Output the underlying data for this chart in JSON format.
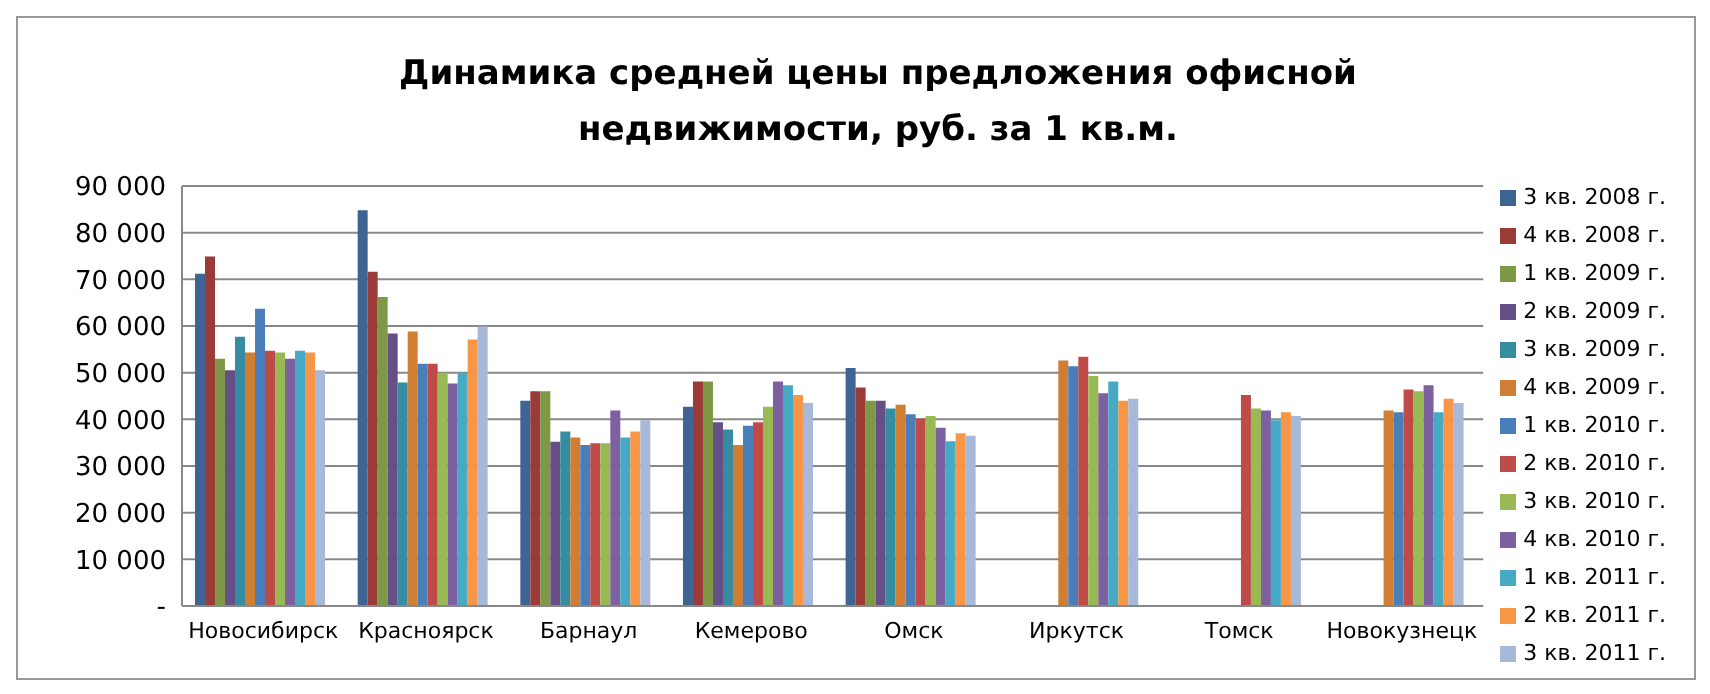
{
  "chart_data": {
    "type": "bar",
    "title": "Динамика средней цены предложения офисной недвижимости, руб. за 1 кв.м.",
    "categories": [
      "Новосибирск",
      "Красноярск",
      "Барнаул",
      "Кемерово",
      "Омск",
      "Иркутск",
      "Томск",
      "Новокузнецк"
    ],
    "series": [
      {
        "name": "3 кв. 2008 г.",
        "color": "#3e6494",
        "values": [
          71200,
          84800,
          44000,
          42700,
          51000,
          null,
          null,
          null
        ]
      },
      {
        "name": "4 кв. 2008 г.",
        "color": "#9a3b38",
        "values": [
          74900,
          71600,
          46000,
          48100,
          46800,
          null,
          null,
          null
        ]
      },
      {
        "name": "1 кв. 2009 г.",
        "color": "#7e9945",
        "values": [
          53000,
          66200,
          46000,
          48100,
          44000,
          null,
          null,
          null
        ]
      },
      {
        "name": "2 кв. 2009 г.",
        "color": "#664f87",
        "values": [
          50500,
          58400,
          35200,
          39400,
          44000,
          null,
          null,
          null
        ]
      },
      {
        "name": "3 кв. 2009 г.",
        "color": "#368da1",
        "values": [
          57700,
          47900,
          37400,
          37800,
          42300,
          null,
          null,
          null
        ]
      },
      {
        "name": "4 кв. 2009 г.",
        "color": "#d07e34",
        "values": [
          54300,
          58800,
          36100,
          34500,
          43100,
          52600,
          null,
          41900
        ]
      },
      {
        "name": "1 кв. 2010 г.",
        "color": "#4a7ebb",
        "values": [
          63700,
          51900,
          34500,
          38600,
          41100,
          51400,
          null,
          41500
        ]
      },
      {
        "name": "2 кв. 2010 г.",
        "color": "#be4b48",
        "values": [
          54700,
          51900,
          34900,
          39400,
          40200,
          53400,
          45200,
          46400
        ]
      },
      {
        "name": "3 кв. 2010 г.",
        "color": "#98b954",
        "values": [
          54300,
          50000,
          34900,
          42700,
          40700,
          49300,
          42300,
          46000
        ]
      },
      {
        "name": "4 кв. 2010 г.",
        "color": "#7d60a0",
        "values": [
          53000,
          47700,
          41900,
          48100,
          38200,
          45600,
          41900,
          47300
        ]
      },
      {
        "name": "1 кв. 2011 г.",
        "color": "#46aac5",
        "values": [
          54700,
          50000,
          36100,
          47300,
          35300,
          48100,
          39800,
          41500
        ]
      },
      {
        "name": "2 кв. 2011 г.",
        "color": "#f79646",
        "values": [
          54300,
          57100,
          37400,
          45200,
          37000,
          44000,
          41500,
          44400
        ]
      },
      {
        "name": "3 кв. 2011 г.",
        "color": "#a7b9d9",
        "values": [
          50500,
          59900,
          39800,
          43500,
          36500,
          44400,
          40700,
          43500
        ]
      }
    ],
    "ylim": [
      0,
      90000
    ],
    "yticks": [
      {
        "value": 0,
        "label": "-"
      },
      {
        "value": 10000,
        "label": "10 000"
      },
      {
        "value": 20000,
        "label": "20 000"
      },
      {
        "value": 30000,
        "label": "30 000"
      },
      {
        "value": 40000,
        "label": "40 000"
      },
      {
        "value": 50000,
        "label": "50 000"
      },
      {
        "value": 60000,
        "label": "60 000"
      },
      {
        "value": 70000,
        "label": "70 000"
      },
      {
        "value": 80000,
        "label": "80 000"
      },
      {
        "value": 90000,
        "label": "90 000"
      }
    ],
    "grid": "y",
    "legend": "right"
  }
}
